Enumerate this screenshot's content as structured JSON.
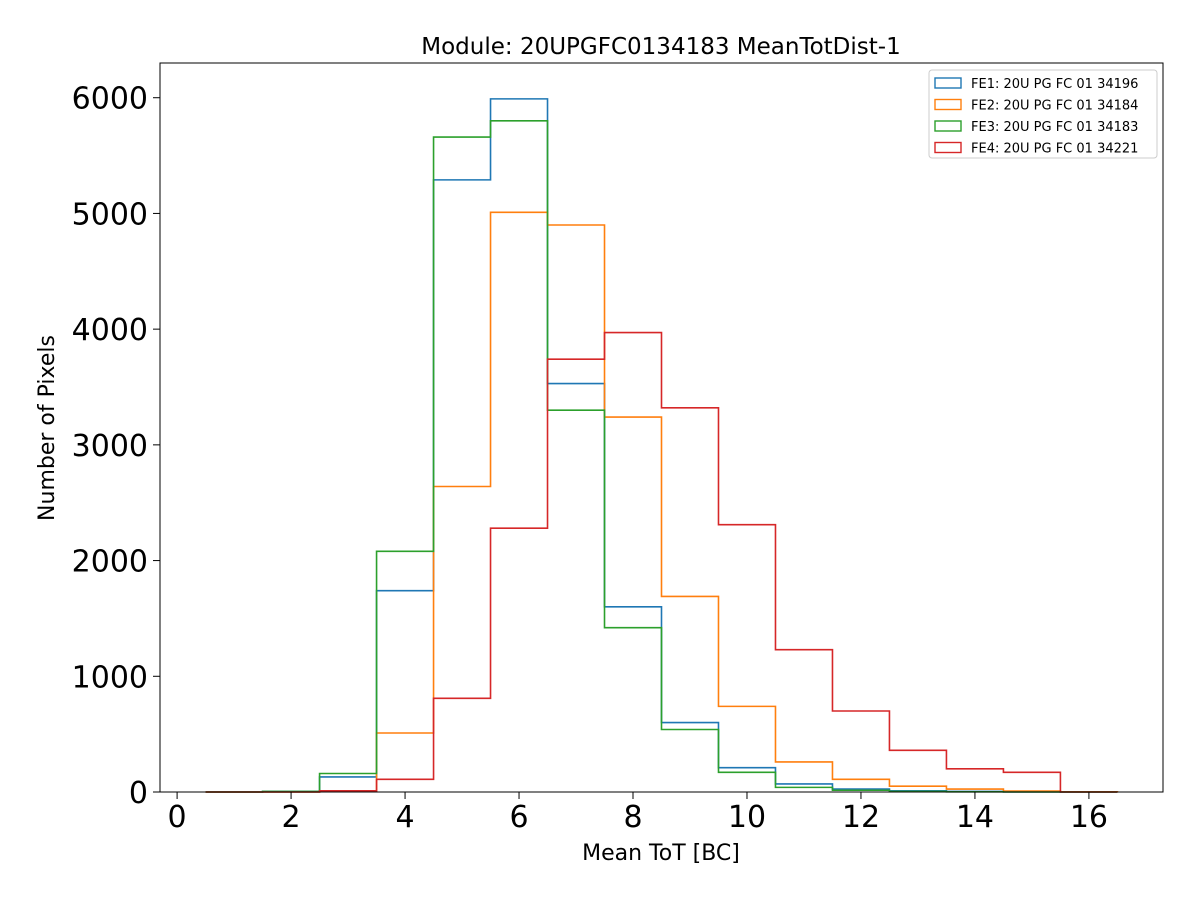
{
  "chart_data": {
    "type": "histogram-step",
    "title": "Module: 20UPGFC0134183 MeanTotDist-1",
    "xlabel": "Mean ToT [BC]",
    "ylabel": "Number of Pixels",
    "xlim": [
      -0.3,
      17.3
    ],
    "ylim": [
      0,
      6300
    ],
    "xticks": [
      0,
      2,
      4,
      6,
      8,
      10,
      12,
      14,
      16
    ],
    "yticks": [
      0,
      1000,
      2000,
      3000,
      4000,
      5000,
      6000
    ],
    "bin_edges": [
      0.5,
      1.5,
      2.5,
      3.5,
      4.5,
      5.5,
      6.5,
      7.5,
      8.5,
      9.5,
      10.5,
      11.5,
      12.5,
      13.5,
      14.5,
      15.5,
      16.5
    ],
    "legend_position": "top-right",
    "series": [
      {
        "name": "FE1: 20U PG FC 01 34196",
        "color": "#1f77b4",
        "values": [
          0,
          5,
          130,
          1740,
          5290,
          5990,
          3530,
          1600,
          600,
          210,
          70,
          25,
          10,
          5,
          2,
          0
        ]
      },
      {
        "name": "FE2: 20U PG FC 01 34184",
        "color": "#ff7f0e",
        "values": [
          0,
          0,
          5,
          510,
          2640,
          5010,
          4900,
          3240,
          1690,
          740,
          260,
          110,
          50,
          25,
          8,
          2
        ]
      },
      {
        "name": "FE3: 20U PG FC 01 34183",
        "color": "#2ca02c",
        "values": [
          0,
          5,
          160,
          2080,
          5660,
          5800,
          3300,
          1420,
          540,
          170,
          40,
          15,
          5,
          2,
          0,
          0
        ]
      },
      {
        "name": "FE4: 20U PG FC 01 34221",
        "color": "#d62728",
        "values": [
          0,
          0,
          10,
          110,
          810,
          2280,
          3740,
          3970,
          3320,
          2310,
          1230,
          700,
          360,
          200,
          170,
          0
        ]
      }
    ]
  }
}
